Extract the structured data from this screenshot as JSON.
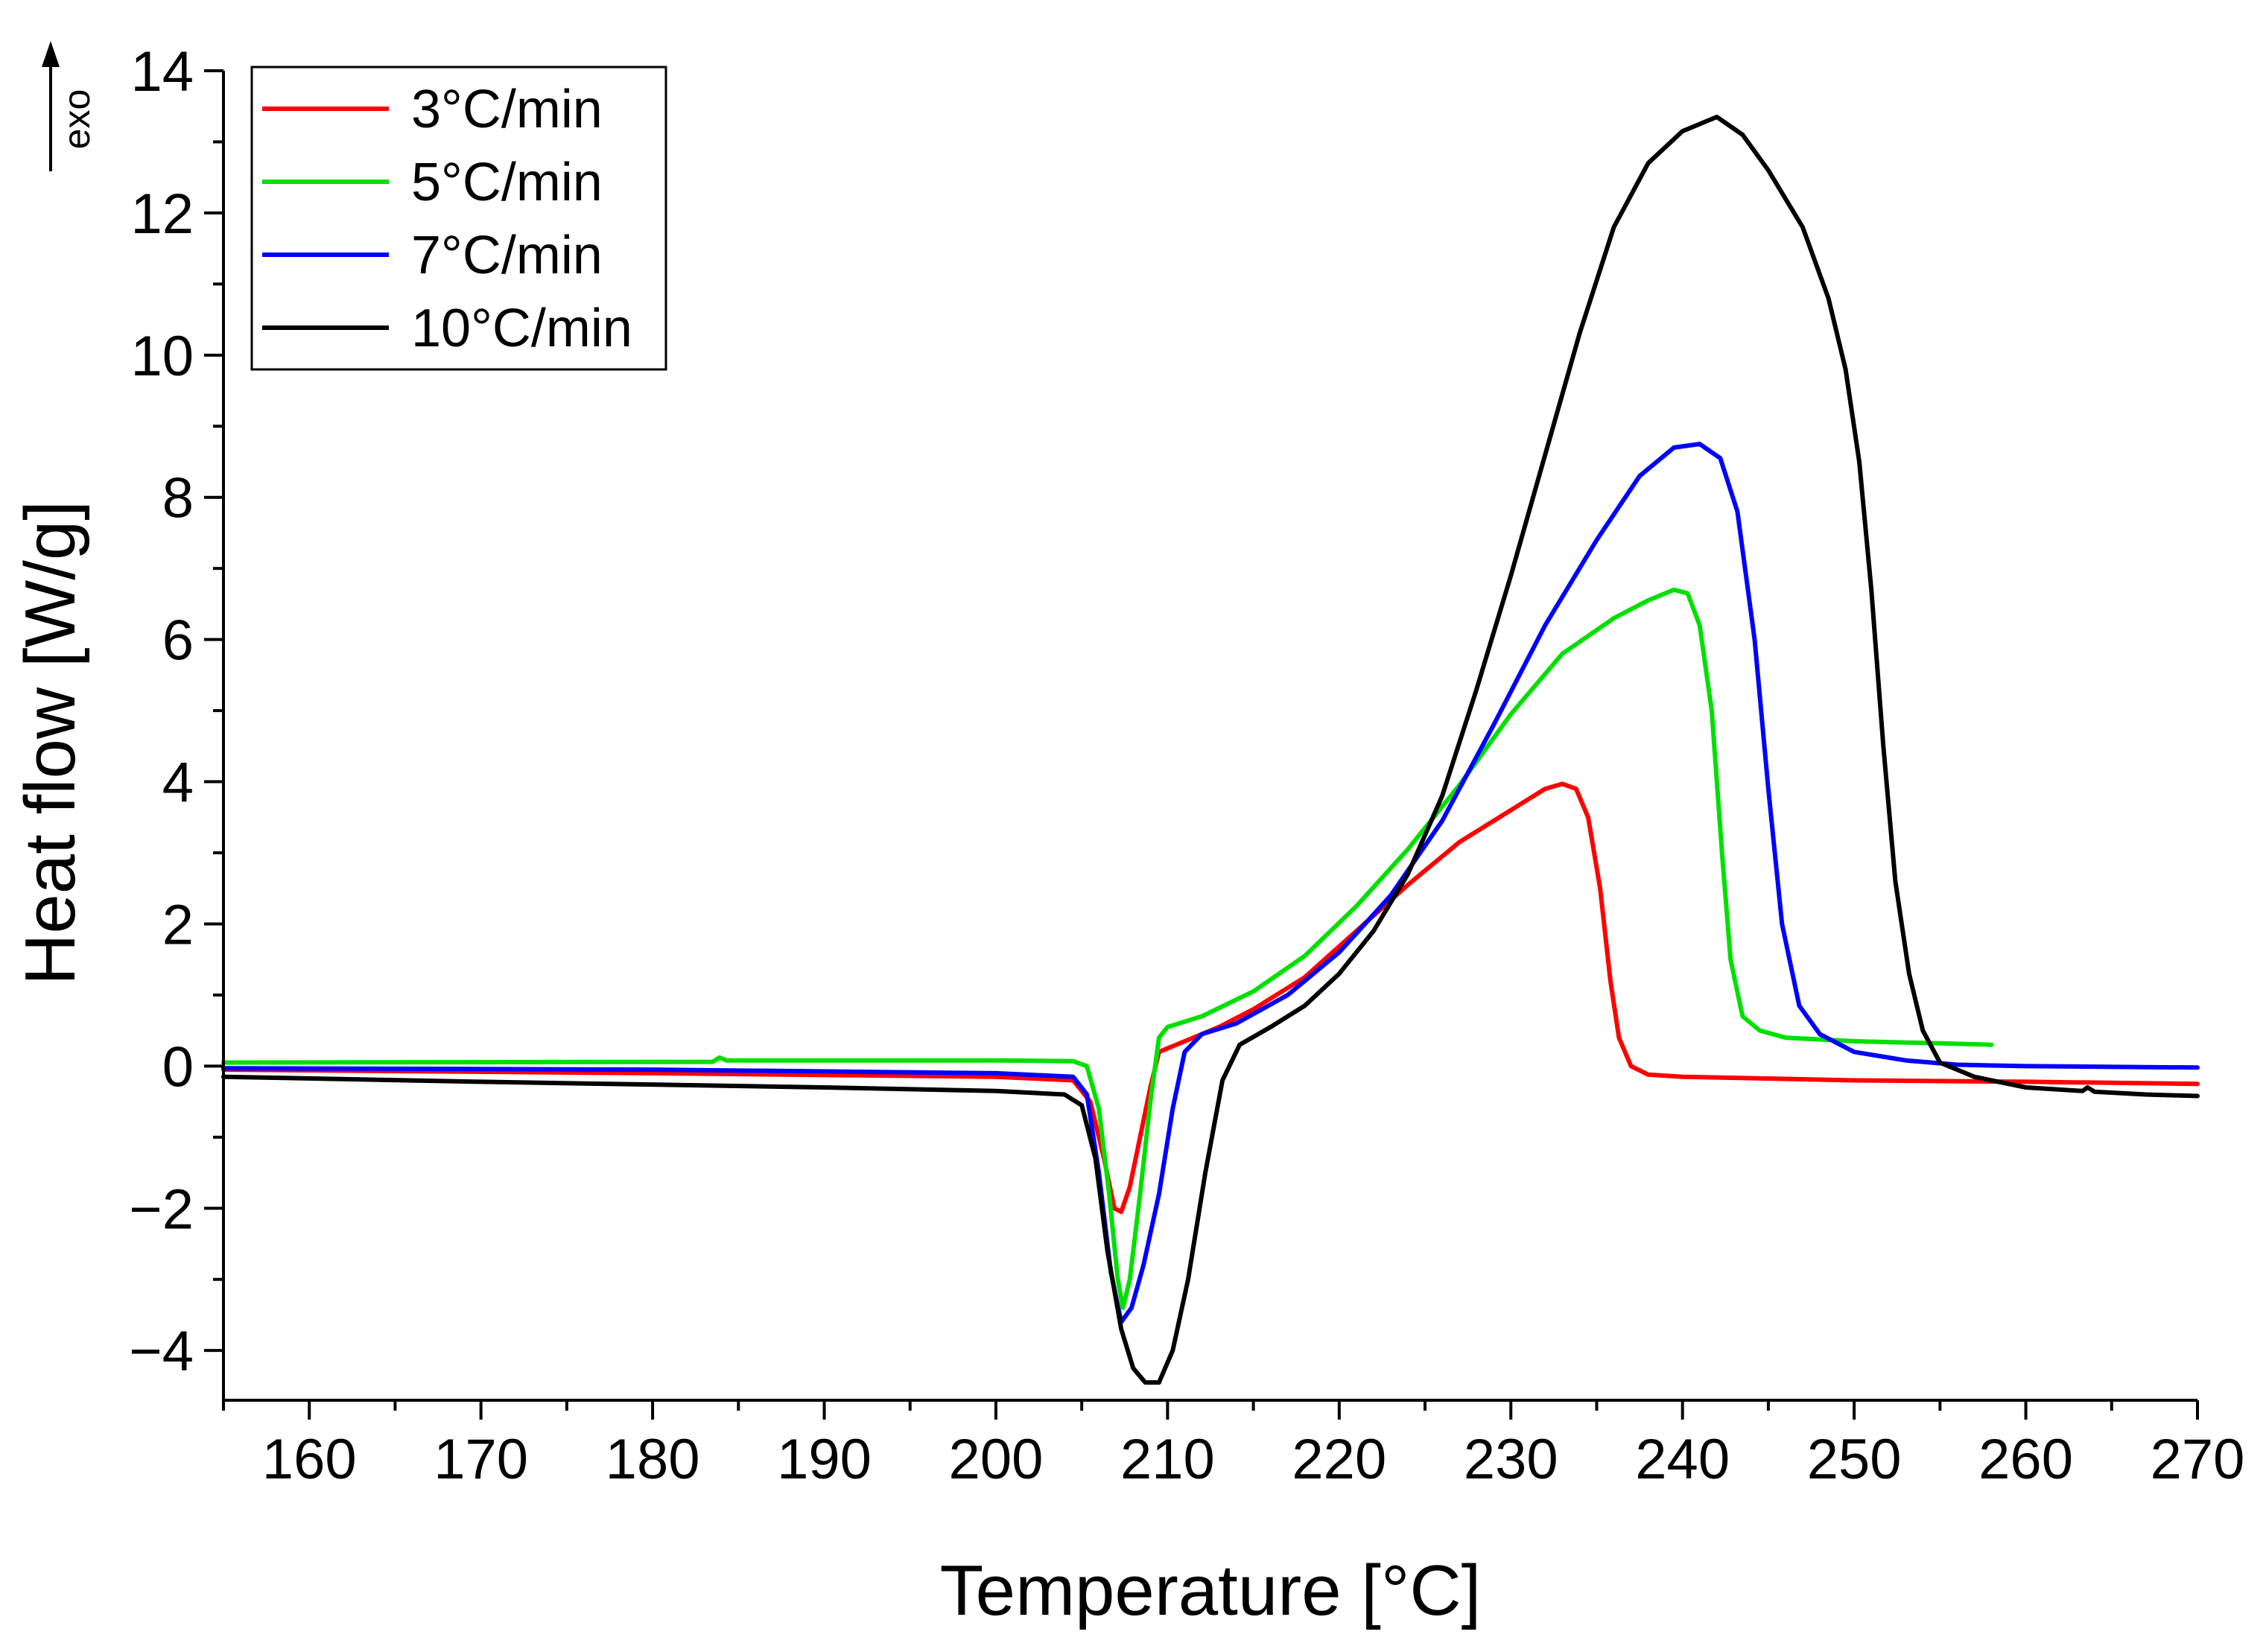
{
  "chart_data": {
    "type": "line",
    "title": "",
    "xlabel": "Temperature [°C]",
    "ylabel": "Heat flow [W/g]",
    "exo_label": "exo",
    "xlim": [
      155,
      270
    ],
    "ylim": [
      -4.7,
      14
    ],
    "x_ticks": [
      160,
      170,
      180,
      190,
      200,
      210,
      220,
      230,
      240,
      250,
      260,
      270
    ],
    "x_tick_labels": [
      "160",
      "170",
      "180",
      "190",
      "200",
      "210",
      "220",
      "230",
      "240",
      "250",
      "260",
      "270"
    ],
    "y_ticks": [
      -4,
      -2,
      0,
      2,
      4,
      6,
      8,
      10,
      12,
      14
    ],
    "y_tick_labels": [
      "−4",
      "−2",
      "0",
      "2",
      "4",
      "6",
      "8",
      "10",
      "12",
      "14"
    ],
    "legend_position": "top-left",
    "series": [
      {
        "name": "3°C/min",
        "color": "#ff0000",
        "points": [
          [
            155,
            -0.05
          ],
          [
            180,
            -0.1
          ],
          [
            200,
            -0.15
          ],
          [
            204.5,
            -0.2
          ],
          [
            205.5,
            -0.5
          ],
          [
            206.3,
            -1.3
          ],
          [
            206.9,
            -2.0
          ],
          [
            207.3,
            -2.05
          ],
          [
            207.8,
            -1.7
          ],
          [
            208.4,
            -1.0
          ],
          [
            209,
            -0.3
          ],
          [
            209.5,
            0.2
          ],
          [
            211,
            0.35
          ],
          [
            213,
            0.55
          ],
          [
            215,
            0.8
          ],
          [
            218,
            1.25
          ],
          [
            221,
            1.9
          ],
          [
            224,
            2.55
          ],
          [
            227,
            3.15
          ],
          [
            230,
            3.6
          ],
          [
            232,
            3.9
          ],
          [
            233,
            3.97
          ],
          [
            233.8,
            3.9
          ],
          [
            234.5,
            3.5
          ],
          [
            235.2,
            2.5
          ],
          [
            235.8,
            1.2
          ],
          [
            236.3,
            0.4
          ],
          [
            237,
            0.0
          ],
          [
            238,
            -0.12
          ],
          [
            240,
            -0.15
          ],
          [
            250,
            -0.2
          ],
          [
            260,
            -0.22
          ],
          [
            270,
            -0.25
          ]
        ]
      },
      {
        "name": "5°C/min",
        "color": "#00e000",
        "points": [
          [
            155,
            0.05
          ],
          [
            183.5,
            0.06
          ],
          [
            183.9,
            0.12
          ],
          [
            184.3,
            0.08
          ],
          [
            190,
            0.08
          ],
          [
            200,
            0.08
          ],
          [
            204.5,
            0.07
          ],
          [
            205.3,
            0.0
          ],
          [
            206,
            -0.6
          ],
          [
            206.6,
            -1.8
          ],
          [
            207.1,
            -3.0
          ],
          [
            207.4,
            -3.4
          ],
          [
            207.8,
            -3.0
          ],
          [
            208.4,
            -1.8
          ],
          [
            209,
            -0.5
          ],
          [
            209.5,
            0.4
          ],
          [
            210,
            0.55
          ],
          [
            212,
            0.7
          ],
          [
            215,
            1.05
          ],
          [
            218,
            1.55
          ],
          [
            221,
            2.25
          ],
          [
            224,
            3.05
          ],
          [
            227,
            3.95
          ],
          [
            230,
            4.95
          ],
          [
            233,
            5.8
          ],
          [
            236,
            6.3
          ],
          [
            238,
            6.55
          ],
          [
            239.5,
            6.7
          ],
          [
            240.3,
            6.65
          ],
          [
            241,
            6.2
          ],
          [
            241.7,
            5.0
          ],
          [
            242.3,
            3.0
          ],
          [
            242.8,
            1.5
          ],
          [
            243.5,
            0.7
          ],
          [
            244.5,
            0.5
          ],
          [
            246,
            0.4
          ],
          [
            250,
            0.35
          ],
          [
            255,
            0.32
          ],
          [
            258,
            0.3
          ]
        ]
      },
      {
        "name": "7°C/min",
        "color": "#0000ff",
        "points": [
          [
            155,
            -0.03
          ],
          [
            180,
            -0.05
          ],
          [
            200,
            -0.1
          ],
          [
            204.5,
            -0.15
          ],
          [
            205.3,
            -0.4
          ],
          [
            206,
            -1.5
          ],
          [
            206.7,
            -2.9
          ],
          [
            207.3,
            -3.6
          ],
          [
            207.9,
            -3.4
          ],
          [
            208.6,
            -2.8
          ],
          [
            209.5,
            -1.8
          ],
          [
            210.3,
            -0.6
          ],
          [
            211,
            0.2
          ],
          [
            212,
            0.45
          ],
          [
            214,
            0.6
          ],
          [
            217,
            1.0
          ],
          [
            220,
            1.6
          ],
          [
            223,
            2.4
          ],
          [
            226,
            3.45
          ],
          [
            229,
            4.8
          ],
          [
            232,
            6.2
          ],
          [
            235,
            7.4
          ],
          [
            237.5,
            8.3
          ],
          [
            239.5,
            8.7
          ],
          [
            241,
            8.75
          ],
          [
            242.2,
            8.55
          ],
          [
            243.2,
            7.8
          ],
          [
            244.2,
            6.0
          ],
          [
            245,
            3.9
          ],
          [
            245.8,
            2.0
          ],
          [
            246.8,
            0.85
          ],
          [
            248,
            0.45
          ],
          [
            250,
            0.2
          ],
          [
            253,
            0.08
          ],
          [
            256,
            0.02
          ],
          [
            260,
            0.0
          ],
          [
            270,
            -0.02
          ]
        ]
      },
      {
        "name": "10°C/min",
        "color": "#000000",
        "points": [
          [
            155,
            -0.15
          ],
          [
            170,
            -0.22
          ],
          [
            190,
            -0.3
          ],
          [
            200,
            -0.35
          ],
          [
            204,
            -0.4
          ],
          [
            205,
            -0.55
          ],
          [
            205.8,
            -1.3
          ],
          [
            206.5,
            -2.6
          ],
          [
            207.3,
            -3.7
          ],
          [
            208,
            -4.25
          ],
          [
            208.7,
            -4.45
          ],
          [
            209.5,
            -4.45
          ],
          [
            210.3,
            -4.0
          ],
          [
            211.2,
            -3.0
          ],
          [
            212.2,
            -1.5
          ],
          [
            213.2,
            -0.2
          ],
          [
            214.2,
            0.3
          ],
          [
            216,
            0.55
          ],
          [
            218,
            0.85
          ],
          [
            220,
            1.3
          ],
          [
            222,
            1.9
          ],
          [
            224,
            2.7
          ],
          [
            226,
            3.8
          ],
          [
            228,
            5.3
          ],
          [
            230,
            6.9
          ],
          [
            232,
            8.6
          ],
          [
            234,
            10.3
          ],
          [
            236,
            11.8
          ],
          [
            238,
            12.7
          ],
          [
            240,
            13.15
          ],
          [
            242,
            13.35
          ],
          [
            243.5,
            13.1
          ],
          [
            245,
            12.6
          ],
          [
            247,
            11.8
          ],
          [
            248.5,
            10.8
          ],
          [
            249.5,
            9.8
          ],
          [
            250.3,
            8.5
          ],
          [
            251,
            6.7
          ],
          [
            251.7,
            4.5
          ],
          [
            252.4,
            2.6
          ],
          [
            253.2,
            1.3
          ],
          [
            254,
            0.5
          ],
          [
            255,
            0.05
          ],
          [
            257,
            -0.15
          ],
          [
            260,
            -0.3
          ],
          [
            263.3,
            -0.35
          ],
          [
            263.6,
            -0.3
          ],
          [
            264,
            -0.36
          ],
          [
            267,
            -0.4
          ],
          [
            270,
            -0.42
          ]
        ]
      }
    ]
  }
}
